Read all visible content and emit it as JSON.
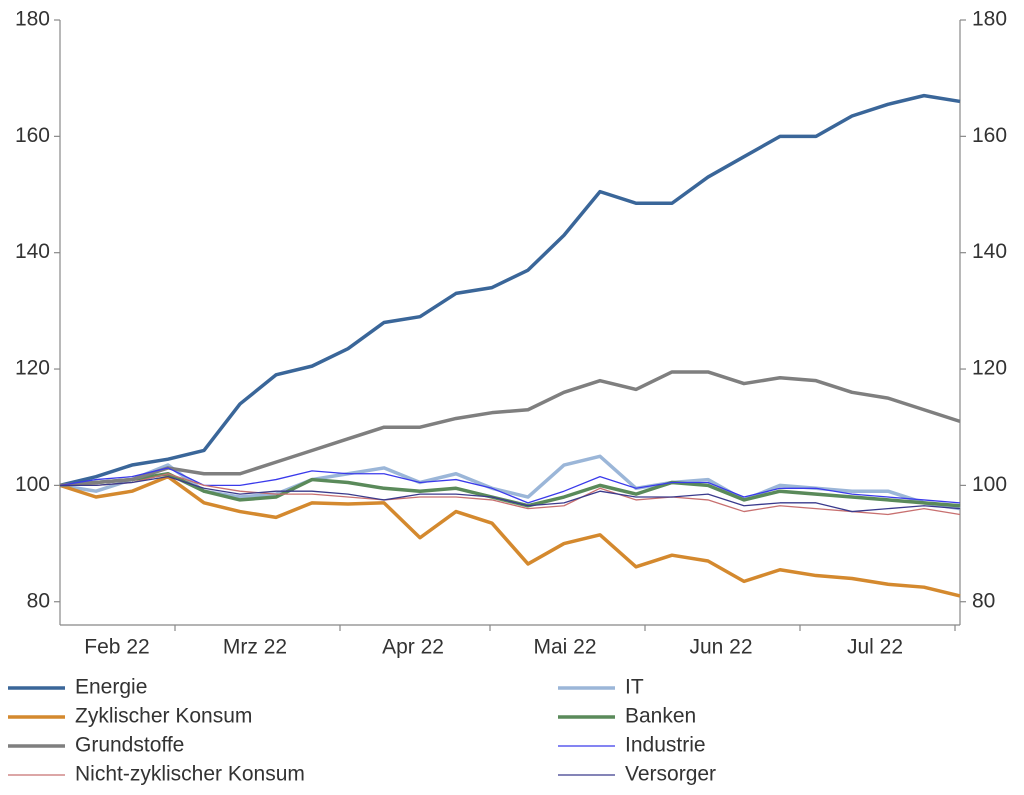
{
  "chart_data": {
    "type": "line",
    "categories": [
      null,
      null,
      null,
      null,
      null,
      null,
      null,
      null,
      null,
      null,
      null,
      null,
      null,
      null,
      null,
      null,
      null,
      null,
      null,
      null,
      null,
      null,
      null,
      null,
      null,
      null
    ],
    "month_labels": [
      "Feb 22",
      "Mrz 22",
      "Apr 22",
      "Mai 22",
      "Jun 22",
      "Jul 22"
    ],
    "ylim": [
      76,
      180
    ],
    "yticks": [
      80,
      100,
      120,
      140,
      160,
      180
    ],
    "y2lim": [
      76,
      180
    ],
    "y2ticks": [
      80,
      100,
      120,
      140,
      160,
      180
    ],
    "grid": false,
    "series": [
      {
        "name": "Energie",
        "color": "#3a6699",
        "line_width": 3.5,
        "values": [
          100,
          101.5,
          103.5,
          104.5,
          106,
          114,
          119,
          120.5,
          123.5,
          128,
          129,
          133,
          134,
          137,
          143,
          150.5,
          148.5,
          148.5,
          153,
          156.5,
          160,
          160,
          163.5,
          165.5,
          167,
          166
        ]
      },
      {
        "name": "IT",
        "color": "#9bb6d8",
        "line_width": 3.5,
        "values": [
          100,
          99,
          101,
          103.5,
          99,
          98,
          98.5,
          101,
          102,
          103,
          100.5,
          102,
          99.5,
          98,
          103.5,
          105,
          99.5,
          100.5,
          101,
          97.5,
          100,
          99.5,
          99,
          99,
          97,
          96
        ]
      },
      {
        "name": "Zyklischer Konsum",
        "color": "#d4892e",
        "line_width": 3.5,
        "values": [
          100,
          98,
          99,
          101.5,
          97,
          95.5,
          94.5,
          97,
          96.8,
          97,
          91,
          95.5,
          93.5,
          86.5,
          90,
          91.5,
          86,
          88,
          87,
          83.5,
          85.5,
          84.5,
          84,
          83,
          82.5,
          81
        ]
      },
      {
        "name": "Banken",
        "color": "#5a8a5a",
        "line_width": 3.5,
        "values": [
          100,
          100.5,
          101,
          102,
          99,
          97.5,
          98,
          101,
          100.5,
          99.5,
          99,
          99.5,
          98,
          96.5,
          98,
          100,
          98.5,
          100.5,
          100,
          97.5,
          99,
          98.5,
          98,
          97.5,
          97,
          96.5
        ]
      },
      {
        "name": "Grundstoffe",
        "color": "#7f7f7f",
        "line_width": 3.5,
        "values": [
          100,
          100.5,
          101,
          103,
          102,
          102,
          104,
          106,
          108,
          110,
          110,
          111.5,
          112.5,
          113,
          116,
          118,
          116.5,
          119.5,
          119.5,
          117.5,
          118.5,
          118,
          116,
          115,
          113,
          111
        ]
      },
      {
        "name": "Industrie",
        "color": "#3a3aeb",
        "line_width": 1.3,
        "values": [
          100,
          101,
          101.5,
          103,
          100,
          100,
          101,
          102.5,
          102,
          102,
          100.5,
          101,
          99.5,
          97,
          99,
          101.5,
          99.5,
          100.5,
          100.5,
          98,
          99.5,
          99.5,
          98.5,
          98,
          97.5,
          97
        ]
      },
      {
        "name": "Nicht-zyklischer Konsum",
        "color": "#c87070",
        "line_width": 1.3,
        "values": [
          100,
          100,
          100.5,
          102,
          100,
          99,
          98.5,
          98.5,
          98,
          97.5,
          98,
          98,
          97.5,
          96,
          96.5,
          99.5,
          97.5,
          98,
          97.5,
          95.5,
          96.5,
          96,
          95.5,
          95,
          96,
          95
        ]
      },
      {
        "name": "Versorger",
        "color": "#3a3a8c",
        "line_width": 1.3,
        "values": [
          100,
          100,
          100.5,
          101.5,
          99.5,
          98.5,
          99,
          99,
          98.5,
          97.5,
          98.5,
          98.5,
          98,
          96.5,
          97,
          99,
          98,
          98,
          98.5,
          96.5,
          97,
          97,
          95.5,
          96,
          96.5,
          96
        ]
      }
    ]
  }
}
